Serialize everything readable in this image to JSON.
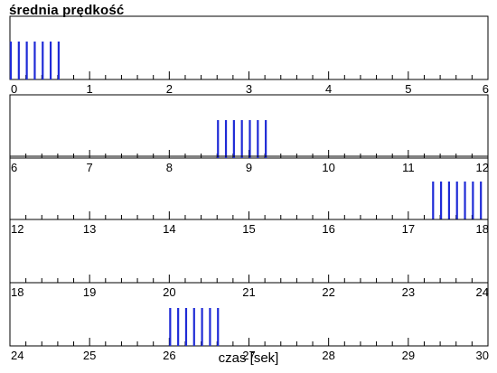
{
  "chart_data": {
    "type": "bar",
    "title": "średnia prędkość",
    "xlabel": "czas [sek]",
    "ylabel": "",
    "grid": false,
    "legend": "none",
    "series_color": "#1f2bd6",
    "rows": [
      {
        "xlim": [
          0,
          6
        ],
        "tick_labels": [
          "0",
          "1",
          "2",
          "3",
          "4",
          "5",
          "6"
        ],
        "bars": [
          0.0,
          0.1,
          0.2,
          0.3,
          0.4,
          0.5,
          0.6
        ]
      },
      {
        "xlim": [
          6,
          12
        ],
        "tick_labels": [
          "6",
          "7",
          "8",
          "9",
          "10",
          "11",
          "12"
        ],
        "bars": [
          8.6,
          8.7,
          8.8,
          8.9,
          9.0,
          9.1,
          9.2
        ]
      },
      {
        "xlim": [
          12,
          18
        ],
        "tick_labels": [
          "12",
          "13",
          "14",
          "15",
          "16",
          "17",
          "18"
        ],
        "bars": [
          17.3,
          17.4,
          17.5,
          17.6,
          17.7,
          17.8,
          17.9
        ]
      },
      {
        "xlim": [
          18,
          24
        ],
        "tick_labels": [
          "18",
          "19",
          "20",
          "21",
          "22",
          "23",
          "24"
        ],
        "bars": []
      },
      {
        "xlim": [
          24,
          30
        ],
        "tick_labels": [
          "24",
          "25",
          "26",
          "27",
          "28",
          "29",
          "30"
        ],
        "bars": [
          26.0,
          26.1,
          26.2,
          26.3,
          26.4,
          26.5,
          26.6
        ]
      }
    ]
  }
}
